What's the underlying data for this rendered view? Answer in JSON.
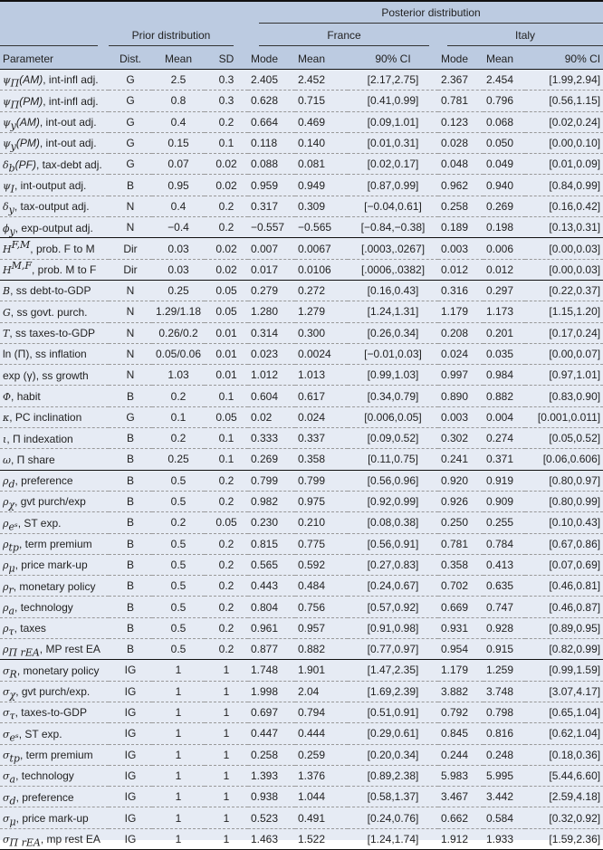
{
  "header": {
    "posterior": "Posterior distribution",
    "prior": "Prior distribution",
    "france": "France",
    "italy": "Italy",
    "cols": [
      "Parameter",
      "Dist.",
      "Mean",
      "SD",
      "Mode",
      "Mean",
      "90% CI",
      "Mode",
      "Mean",
      "90% CI"
    ]
  },
  "rows": [
    {
      "p": [
        "ψ",
        "Π",
        "",
        "(AM)",
        ", int-infl adj."
      ],
      "v": [
        "G",
        "2.5",
        "0.3",
        "2.405",
        "2.452",
        "[2.17,2.75]",
        "2.367",
        "2.454",
        "[1.99,2.94]"
      ]
    },
    {
      "p": [
        "ψ",
        "Π",
        "",
        "(PM)",
        ", int-infl adj."
      ],
      "v": [
        "G",
        "0.8",
        "0.3",
        "0.628",
        "0.715",
        "[0.41,0.99]",
        "0.781",
        "0.796",
        "[0.56,1.15]"
      ]
    },
    {
      "p": [
        "ψ",
        "y",
        "",
        "(AM)",
        ", int-out adj."
      ],
      "v": [
        "G",
        "0.4",
        "0.2",
        "0.664",
        "0.469",
        "[0.09,1.01]",
        "0.123",
        "0.068",
        "[0.02,0.24]"
      ]
    },
    {
      "p": [
        "ψ",
        "y",
        "",
        "(PM)",
        ", int-out adj."
      ],
      "v": [
        "G",
        "0.15",
        "0.1",
        "0.118",
        "0.140",
        "[0.01,0.31]",
        "0.028",
        "0.050",
        "[0.00,0.10]"
      ]
    },
    {
      "p": [
        "δ",
        "b",
        "",
        "(PF)",
        ", tax-debt adj."
      ],
      "v": [
        "G",
        "0.07",
        "0.02",
        "0.088",
        "0.081",
        "[0.02,0.17]",
        "0.048",
        "0.049",
        "[0.01,0.09]"
      ]
    },
    {
      "p": [
        "ψ",
        "I",
        "",
        "",
        ", int-output adj."
      ],
      "v": [
        "B",
        "0.95",
        "0.02",
        "0.959",
        "0.949",
        "[0.87,0.99]",
        "0.962",
        "0.940",
        "[0.84,0.99]"
      ]
    },
    {
      "p": [
        "δ",
        "y",
        "",
        "",
        ", tax-output adj."
      ],
      "v": [
        "N",
        "0.4",
        "0.2",
        "0.317",
        "0.309",
        "[−0.04,0.61]",
        "0.258",
        "0.269",
        "[0.16,0.42]"
      ]
    },
    {
      "p": [
        "ϕ",
        "y",
        "",
        "",
        ", exp-output adj."
      ],
      "v": [
        "N",
        "−0.4",
        "0.2",
        "−0.557",
        "−0.565",
        "[−0.84,−0.38]",
        "0.189",
        "0.198",
        "[0.13,0.31]"
      ],
      "sep": true
    },
    {
      "p": [
        "H",
        "",
        "F,M",
        "",
        ", prob. F to M"
      ],
      "v": [
        "Dir",
        "0.03",
        "0.02",
        "0.007",
        "0.0067",
        "[.0003,.0267]",
        "0.003",
        "0.006",
        "[0.00,0.03]"
      ]
    },
    {
      "p": [
        "H",
        "",
        "M,F",
        "",
        ", prob. M to F"
      ],
      "v": [
        "Dir",
        "0.03",
        "0.02",
        "0.017",
        "0.0106",
        "[.0006,.0382]",
        "0.012",
        "0.012",
        "[0.00,0.03]"
      ],
      "sep": true
    },
    {
      "p": [
        "B",
        "",
        "",
        "",
        ", ss debt-to-GDP"
      ],
      "v": [
        "N",
        "0.25",
        "0.05",
        "0.279",
        "0.272",
        "[0.16,0.43]",
        "0.316",
        "0.297",
        "[0.22,0.37]"
      ]
    },
    {
      "p": [
        "G",
        "",
        "",
        "",
        ", ss govt. purch."
      ],
      "v": [
        "N",
        "1.29/1.18",
        "0.05",
        "1.280",
        "1.279",
        "[1.24,1.31]",
        "1.179",
        "1.173",
        "[1.15,1.20]"
      ]
    },
    {
      "p": [
        "T",
        "",
        "",
        "",
        ", ss taxes-to-GDP"
      ],
      "v": [
        "N",
        "0.26/0.2",
        "0.01",
        "0.314",
        "0.300",
        "[0.26,0.34]",
        "0.208",
        "0.201",
        "[0.17,0.24]"
      ]
    },
    {
      "p": [
        "",
        "",
        "",
        "ln (Π)",
        ", ss inflation"
      ],
      "v": [
        "N",
        "0.05/0.06",
        "0.01",
        "0.023",
        "0.0024",
        "[−0.01,0.03]",
        "0.024",
        "0.035",
        "[0.00,0.07]"
      ]
    },
    {
      "p": [
        "",
        "",
        "",
        "exp (γ)",
        ", ss growth"
      ],
      "v": [
        "N",
        "1.03",
        "0.01",
        "1.012",
        "1.013",
        "[0.99,1.03]",
        "0.997",
        "0.984",
        "[0.97,1.01]"
      ]
    },
    {
      "p": [
        "Φ",
        "",
        "",
        "",
        ", habit"
      ],
      "v": [
        "B",
        "0.2",
        "0.1",
        "0.604",
        "0.617",
        "[0.34,0.79]",
        "0.890",
        "0.882",
        "[0.83,0.90]"
      ]
    },
    {
      "p": [
        "κ",
        "",
        "",
        "",
        ", PC inclination"
      ],
      "v": [
        "G",
        "0.1",
        "0.05",
        "0.02",
        "0.024",
        "[0.006,0.05]",
        "0.003",
        "0.004",
        "[0.001,0.011]"
      ]
    },
    {
      "p": [
        "ι",
        "",
        "",
        "",
        ", Π indexation"
      ],
      "v": [
        "B",
        "0.2",
        "0.1",
        "0.333",
        "0.337",
        "[0.09,0.52]",
        "0.302",
        "0.274",
        "[0.05,0.52]"
      ]
    },
    {
      "p": [
        "ω",
        "",
        "",
        "",
        ", Π share"
      ],
      "v": [
        "B",
        "0.25",
        "0.1",
        "0.269",
        "0.358",
        "[0.11,0.75]",
        "0.241",
        "0.371",
        "[0.06,0.606]"
      ],
      "sep": true
    },
    {
      "p": [
        "ρ",
        "d",
        "",
        "",
        ", preference"
      ],
      "v": [
        "B",
        "0.5",
        "0.2",
        "0.799",
        "0.799",
        "[0.56,0.96]",
        "0.920",
        "0.919",
        "[0.80,0.97]"
      ]
    },
    {
      "p": [
        "ρ",
        "χ",
        "",
        "",
        ", gvt purch/exp"
      ],
      "v": [
        "B",
        "0.5",
        "0.2",
        "0.982",
        "0.975",
        "[0.92,0.99]",
        "0.926",
        "0.909",
        "[0.80,0.99]"
      ]
    },
    {
      "p": [
        "ρ",
        "eˢ",
        "",
        "",
        ", ST exp."
      ],
      "v": [
        "B",
        "0.2",
        "0.05",
        "0.230",
        "0.210",
        "[0.08,0.38]",
        "0.250",
        "0.255",
        "[0.10,0.43]"
      ]
    },
    {
      "p": [
        "ρ",
        "tp",
        "",
        "",
        ", term premium"
      ],
      "v": [
        "B",
        "0.5",
        "0.2",
        "0.815",
        "0.775",
        "[0.56,0.91]",
        "0.781",
        "0.784",
        "[0.67,0.86]"
      ]
    },
    {
      "p": [
        "ρ",
        "μ",
        "",
        "",
        ", price mark-up"
      ],
      "v": [
        "B",
        "0.5",
        "0.2",
        "0.565",
        "0.592",
        "[0.27,0.83]",
        "0.358",
        "0.413",
        "[0.07,0.69]"
      ]
    },
    {
      "p": [
        "ρ",
        "r",
        "",
        "",
        ", monetary policy"
      ],
      "v": [
        "B",
        "0.5",
        "0.2",
        "0.443",
        "0.484",
        "[0.24,0.67]",
        "0.702",
        "0.635",
        "[0.46,0.81]"
      ]
    },
    {
      "p": [
        "ρ",
        "a",
        "",
        "",
        ", technology"
      ],
      "v": [
        "B",
        "0.5",
        "0.2",
        "0.804",
        "0.756",
        "[0.57,0.92]",
        "0.669",
        "0.747",
        "[0.46,0.87]"
      ]
    },
    {
      "p": [
        "ρ",
        "τ",
        "",
        "",
        ", taxes"
      ],
      "v": [
        "B",
        "0.5",
        "0.2",
        "0.961",
        "0.957",
        "[0.91,0.98]",
        "0.931",
        "0.928",
        "[0.89,0.95]"
      ]
    },
    {
      "p": [
        "ρ",
        "Π rEA",
        "",
        "",
        ", MP rest EA"
      ],
      "v": [
        "B",
        "0.5",
        "0.2",
        "0.877",
        "0.882",
        "[0.77,0.97]",
        "0.954",
        "0.915",
        "[0.82,0.99]"
      ],
      "sep": true
    },
    {
      "p": [
        "σ",
        "R",
        "",
        "",
        ", monetary policy"
      ],
      "v": [
        "IG",
        "1",
        "1",
        "1.748",
        "1.901",
        "[1.47,2.35]",
        "1.179",
        "1.259",
        "[0.99,1.59]"
      ]
    },
    {
      "p": [
        "σ",
        "χ",
        "",
        "",
        ", gvt purch/exp."
      ],
      "v": [
        "IG",
        "1",
        "1",
        "1.998",
        "2.04",
        "[1.69,2.39]",
        "3.882",
        "3.748",
        "[3.07,4.17]"
      ]
    },
    {
      "p": [
        "σ",
        "τ",
        "",
        "",
        ", taxes-to-GDP"
      ],
      "v": [
        "IG",
        "1",
        "1",
        "0.697",
        "0.794",
        "[0.51,0.91]",
        "0.792",
        "0.798",
        "[0.65,1.04]"
      ]
    },
    {
      "p": [
        "σ",
        "eˢ",
        "",
        "",
        ", ST exp."
      ],
      "v": [
        "IG",
        "1",
        "1",
        "0.447",
        "0.444",
        "[0.29,0.61]",
        "0.845",
        "0.816",
        "[0.62,1.04]"
      ]
    },
    {
      "p": [
        "σ",
        "tp",
        "",
        "",
        ", term premium"
      ],
      "v": [
        "IG",
        "1",
        "1",
        "0.258",
        "0.259",
        "[0.20,0.34]",
        "0.244",
        "0.248",
        "[0.18,0.36]"
      ]
    },
    {
      "p": [
        "σ",
        "a",
        "",
        "",
        ", technology"
      ],
      "v": [
        "IG",
        "1",
        "1",
        "1.393",
        "1.376",
        "[0.89,2.38]",
        "5.983",
        "5.995",
        "[5.44,6.60]"
      ]
    },
    {
      "p": [
        "σ",
        "d",
        "",
        "",
        ", preference"
      ],
      "v": [
        "IG",
        "1",
        "1",
        "0.938",
        "1.044",
        "[0.58,1.37]",
        "3.467",
        "3.442",
        "[2.59,4.18]"
      ]
    },
    {
      "p": [
        "σ",
        "μ",
        "",
        "",
        ", price mark-up"
      ],
      "v": [
        "IG",
        "1",
        "1",
        "0.523",
        "0.491",
        "[0.24,0.76]",
        "0.662",
        "0.584",
        "[0.32,0.92]"
      ]
    },
    {
      "p": [
        "σ",
        "Π rEA",
        "",
        "",
        ", mp rest EA"
      ],
      "v": [
        "IG",
        "1",
        "1",
        "1.463",
        "1.522",
        "[1.24,1.74]",
        "1.912",
        "1.933",
        "[1.59,2.36]"
      ]
    }
  ]
}
